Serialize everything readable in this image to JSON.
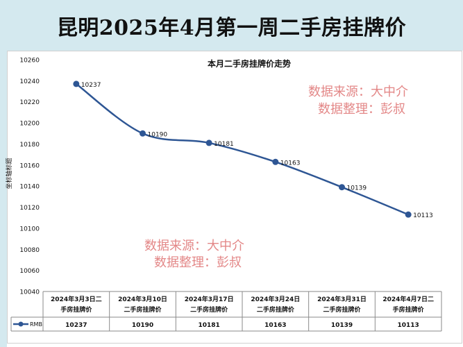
{
  "banner": {
    "title": "昆明2025年4月第一周二手房挂牌价"
  },
  "watermark": {
    "line1": "数据来源：大中介",
    "line2": "数据整理：彭叔"
  },
  "colors": {
    "line": "#2e5694",
    "marker": "#2e5694",
    "banner_bg": "#d4e9ef",
    "watermark": "#e07a7a"
  },
  "chart_data": {
    "type": "line",
    "title": "本月二手房挂牌价走势",
    "xlabel": "",
    "ylabel": "坐标轴标题",
    "ylim": [
      10040,
      10260
    ],
    "yticks": [
      10040,
      10060,
      10080,
      10100,
      10120,
      10140,
      10160,
      10180,
      10200,
      10220,
      10240,
      10260
    ],
    "categories": [
      [
        "2024年3月3日二",
        "手房挂牌价"
      ],
      [
        "2024年3月10日",
        "二手房挂牌价"
      ],
      [
        "2024年3月17日",
        "二手房挂牌价"
      ],
      [
        "2024年3月24日",
        "二手房挂牌价"
      ],
      [
        "2024年3月31日",
        "二手房挂牌价"
      ],
      [
        "2024年4月7日二",
        "手房挂牌价"
      ]
    ],
    "series": [
      {
        "name": "RMB",
        "values": [
          10237,
          10190,
          10181,
          10163,
          10139,
          10113
        ]
      }
    ],
    "grid": false,
    "legend": "data-table"
  }
}
